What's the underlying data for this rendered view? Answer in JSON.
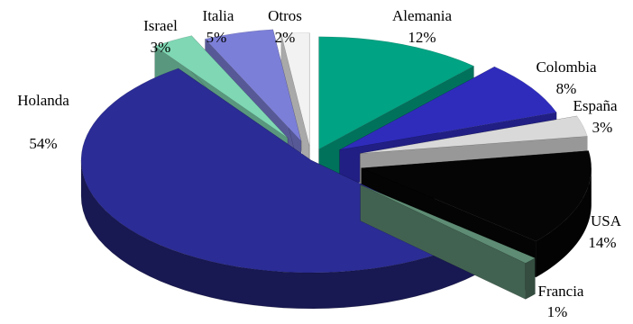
{
  "chart_data": {
    "type": "pie",
    "style": "3d-exploded",
    "title": "",
    "legend": "none",
    "unit": "%",
    "slices": [
      {
        "name": "Alemania",
        "value": 12,
        "label": "12%",
        "color": "#00a383"
      },
      {
        "name": "Colombia",
        "value": 8,
        "label": "8%",
        "color": "#2f2cbc"
      },
      {
        "name": "España",
        "value": 3,
        "label": "3%",
        "color": "#d9d9d9"
      },
      {
        "name": "USA",
        "value": 14,
        "label": "14%",
        "color": "#050505"
      },
      {
        "name": "Francia",
        "value": 1,
        "label": "1%",
        "color": "#5e8c74"
      },
      {
        "name": "Holanda",
        "value": 54,
        "label": "54%",
        "color": "#2b2c95"
      },
      {
        "name": "Israel",
        "value": 3,
        "label": "3%",
        "color": "#7fd7b4"
      },
      {
        "name": "Italia",
        "value": 5,
        "label": "5%",
        "color": "#7c7fd8"
      },
      {
        "name": "Otros",
        "value": 2,
        "label": "2%",
        "color": "#f2f2f2"
      }
    ]
  }
}
